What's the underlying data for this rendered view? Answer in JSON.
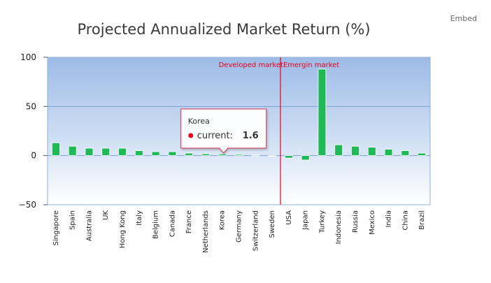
{
  "embed_label": "Embed",
  "chart_data": {
    "type": "bar",
    "title": "Projected Annualized Market Return (%)",
    "xlabel": "",
    "ylabel": "",
    "ylim": [
      -50,
      100
    ],
    "yticks": [
      "100",
      "50",
      "0",
      "−50"
    ],
    "ytick_values": [
      100,
      50,
      0,
      -50
    ],
    "grid": true,
    "categories": [
      "Singapore",
      "Spain",
      "Australia",
      "UK",
      "Hong Kong",
      "Italy",
      "Belgium",
      "Canada",
      "France",
      "Netherlands",
      "Korea",
      "Germany",
      "Switzerland",
      "Sweden",
      "USA",
      "Japan",
      "Turkey",
      "Indonesia",
      "Russia",
      "Mexico",
      "India",
      "China",
      "Brazil"
    ],
    "series": [
      {
        "name": "current",
        "color": "#1fba57",
        "values": [
          13.0,
          9.5,
          7.5,
          7.5,
          7.5,
          5.0,
          4.0,
          4.0,
          2.5,
          1.8,
          1.6,
          1.2,
          0.5,
          0.2,
          -2.5,
          -4.5,
          88.0,
          11.0,
          9.5,
          8.5,
          6.5,
          5.0,
          2.5
        ]
      }
    ],
    "divider": {
      "after_category": "Sweden",
      "color": "#e8001c",
      "left_label": "Developed market",
      "right_label": "Emergin market"
    },
    "tooltip": {
      "category": "Korea",
      "series": "current",
      "value": "1.6",
      "marker_color": "#e8001c"
    }
  }
}
